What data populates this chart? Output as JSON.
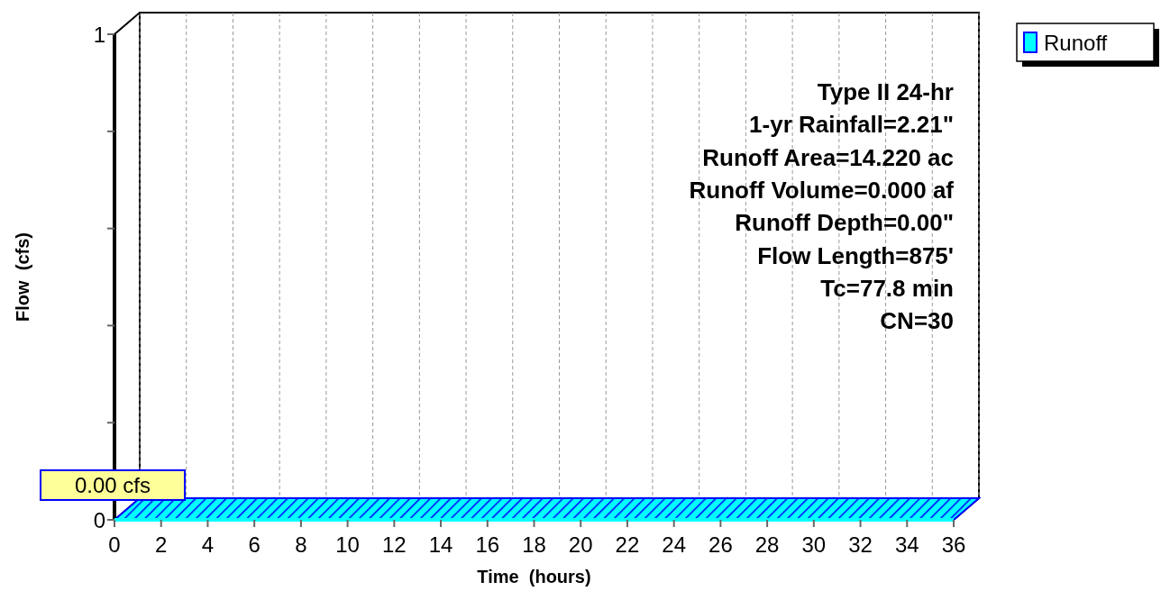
{
  "chart_data": {
    "type": "line",
    "xlabel": "Time  (hours)",
    "ylabel": "Flow  (cfs)",
    "x": [
      0,
      36
    ],
    "series": [
      {
        "name": "Runoff",
        "color": "#00ffff",
        "values": [
          0,
          0
        ]
      }
    ],
    "xlim": [
      0,
      36
    ],
    "xticks": [
      0,
      2,
      4,
      6,
      8,
      10,
      12,
      14,
      16,
      18,
      20,
      22,
      24,
      26,
      28,
      30,
      32,
      34,
      36
    ],
    "ylim": [
      0,
      1
    ],
    "yticks": [
      0,
      {
        "value": 0.2,
        "label": null
      },
      {
        "value": 0.4,
        "label": null
      },
      {
        "value": 0.6,
        "label": null
      },
      {
        "value": 0.8,
        "label": null
      },
      1
    ],
    "grid": "x",
    "legend": "top right",
    "annotations": [
      "0.00 cfs",
      "Type II 24-hr",
      "1-yr Rainfall=2.21\"",
      "Runoff Area=14.220 ac",
      "Runoff Volume=0.000 af",
      "Runoff Depth=0.00\"",
      "Flow Length=875'",
      "Tc=77.8 min",
      "CN=30"
    ]
  }
}
